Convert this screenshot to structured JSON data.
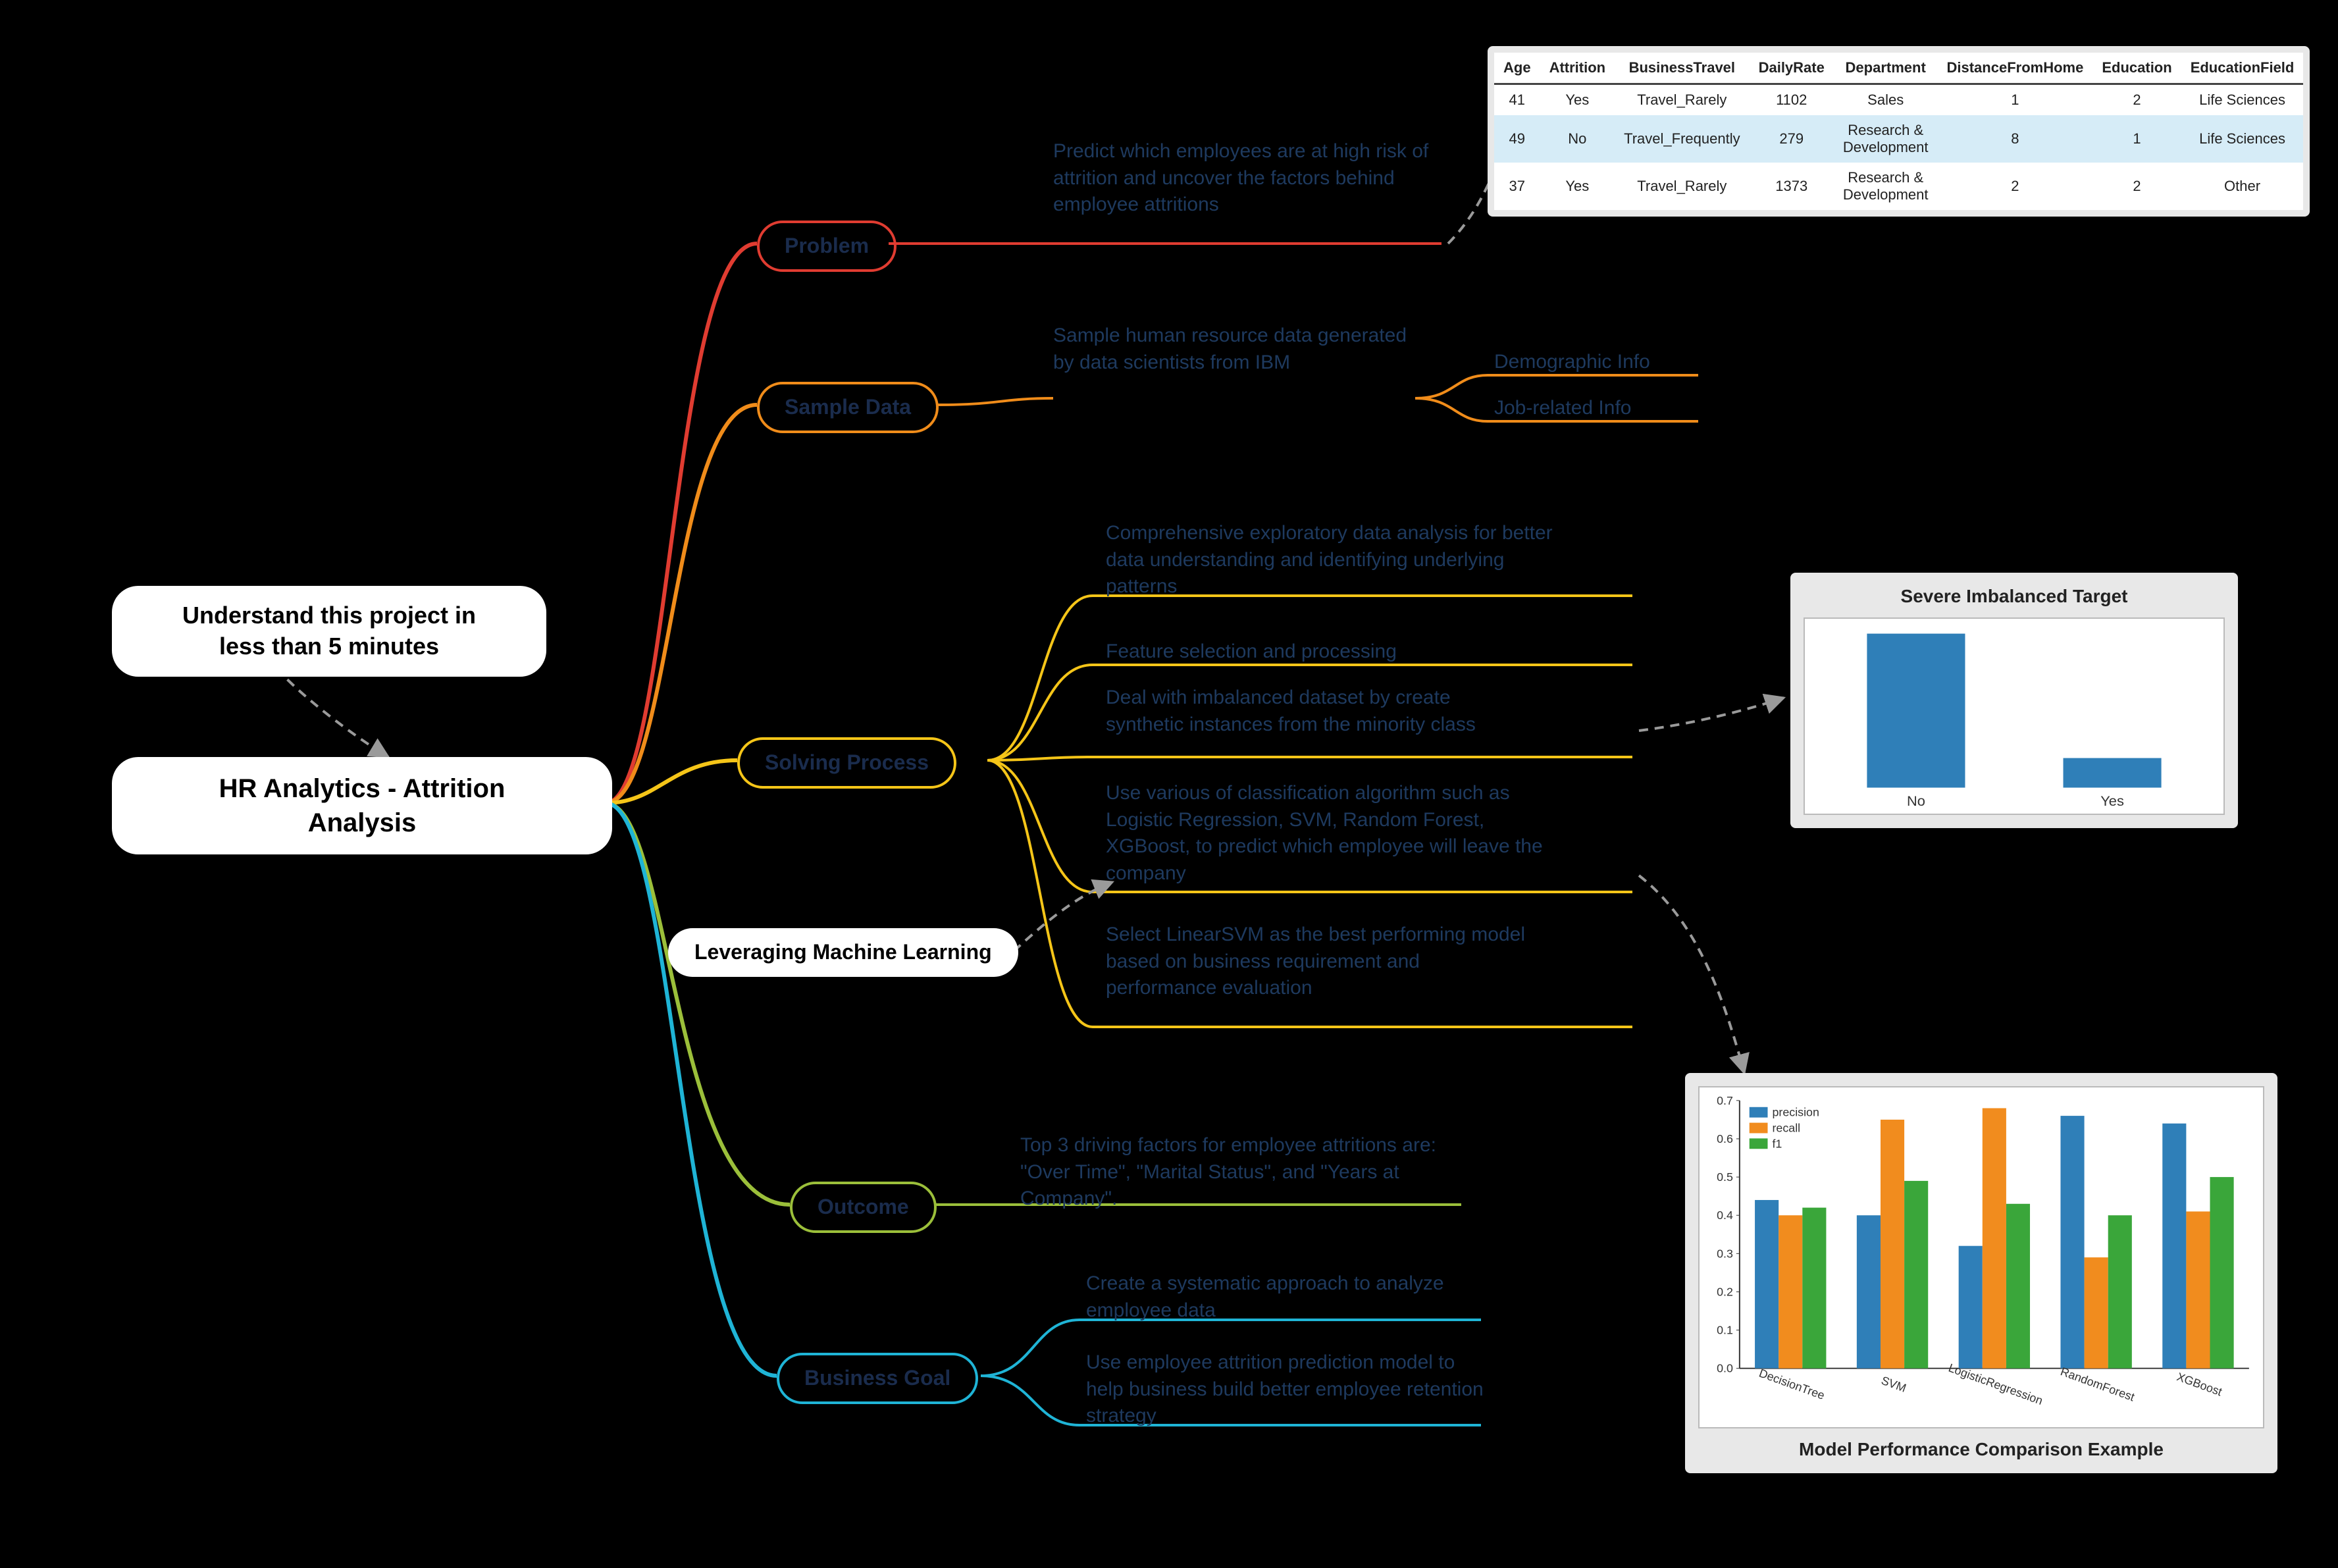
{
  "colors": {
    "bg": "#000000",
    "text_dark": "#1e3a5f",
    "problem": "#e03c31",
    "sampledata": "#f08c1a",
    "solving": "#f5c518",
    "outcome": "#9bbf3a",
    "business": "#1fb4d6",
    "connector_grey": "#9a9a9a"
  },
  "root": {
    "title": "HR Analytics - Attrition\nAnalysis"
  },
  "tag_top": {
    "label": "Understand this project in\nless than 5 minutes"
  },
  "tag_ml": {
    "label": "Leveraging Machine Learning"
  },
  "branches": {
    "problem": {
      "label": "Problem",
      "color": "#e03c31",
      "leaves": [
        "Predict which employees are at high risk of attrition and uncover the factors behind employee attritions"
      ]
    },
    "sampledata": {
      "label": "Sample Data",
      "color": "#f08c1a",
      "leaves": [
        "Sample human resource data generated by data scientists from IBM"
      ],
      "subs": [
        "Demographic Info",
        "Job-related Info"
      ]
    },
    "solving": {
      "label": "Solving Process",
      "color": "#f5c518",
      "leaves": [
        "Comprehensive exploratory data analysis for better data understanding and identifying underlying patterns",
        "Feature selection and processing",
        "Deal with imbalanced dataset by create synthetic instances from the minority class",
        "Use various of classification algorithm such as Logistic Regression, SVM, Random Forest, XGBoost, to predict which employee will leave the company",
        "Select LinearSVM as the best performing model based on business requirement and performance evaluation"
      ]
    },
    "outcome": {
      "label": "Outcome",
      "color": "#9bbf3a",
      "leaves": [
        "Top 3 driving factors for employee attritions are: \"Over Time\", \"Marital Status\", and \"Years at Company\"."
      ]
    },
    "business": {
      "label": "Business Goal",
      "color": "#1fb4d6",
      "leaves": [
        "Create a systematic approach to analyze employee data",
        "Use employee attrition prediction model to help business build better employee retention strategy"
      ]
    }
  },
  "sample_table": {
    "columns": [
      "Age",
      "Attrition",
      "BusinessTravel",
      "DailyRate",
      "Department",
      "DistanceFromHome",
      "Education",
      "EducationField"
    ],
    "rows": [
      [
        "41",
        "Yes",
        "Travel_Rarely",
        "1102",
        "Sales",
        "1",
        "2",
        "Life Sciences"
      ],
      [
        "49",
        "No",
        "Travel_Frequently",
        "279",
        "Research &\nDevelopment",
        "8",
        "1",
        "Life Sciences"
      ],
      [
        "37",
        "Yes",
        "Travel_Rarely",
        "1373",
        "Research &\nDevelopment",
        "2",
        "2",
        "Other"
      ]
    ],
    "highlight_row": 1
  },
  "imbalance_chart": {
    "title": "Severe Imbalanced Target",
    "categories": [
      "No",
      "Yes"
    ],
    "values": [
      1233,
      237
    ],
    "bar_color": "#2f7fb8",
    "ymax": 1300,
    "bg": "#ffffff",
    "border": "#bababa"
  },
  "perf_chart": {
    "caption": "Model Performance Comparison Example",
    "categories": [
      "DecisionTree",
      "SVM",
      "LogisticRegression",
      "RandomForest",
      "XGBoost"
    ],
    "series": [
      {
        "name": "precision",
        "color": "#2f7fb8",
        "values": [
          0.44,
          0.4,
          0.32,
          0.66,
          0.64
        ]
      },
      {
        "name": "recall",
        "color": "#f18c1e",
        "values": [
          0.4,
          0.65,
          0.68,
          0.29,
          0.41
        ]
      },
      {
        "name": "f1",
        "color": "#3aa63a",
        "values": [
          0.42,
          0.49,
          0.43,
          0.4,
          0.5
        ]
      }
    ],
    "yticks": [
      0.0,
      0.1,
      0.2,
      0.3,
      0.4,
      0.5,
      0.6,
      0.7
    ],
    "ymax": 0.7,
    "legend_pos": "top-left",
    "bg": "#ffffff",
    "border": "#bababa",
    "label_rotation_deg": 20,
    "label_fontsize": 18
  }
}
